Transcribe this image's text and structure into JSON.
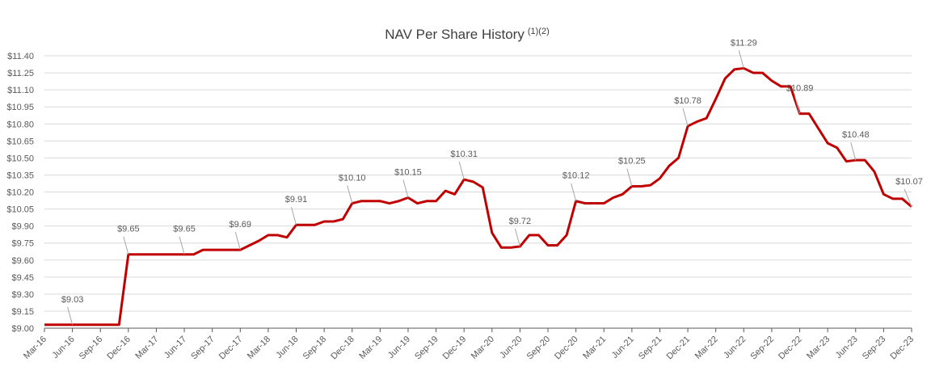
{
  "chart_data": {
    "type": "line",
    "title": "NAV Per Share History",
    "title_superscript": "(1)(2)",
    "categories": [
      "Mar-16",
      null,
      null,
      "Jun-16",
      null,
      null,
      "Sep-16",
      null,
      null,
      "Dec-16",
      null,
      null,
      "Mar-17",
      null,
      null,
      "Jun-17",
      null,
      null,
      "Sep-17",
      null,
      null,
      "Dec-17",
      null,
      null,
      "Mar-18",
      null,
      null,
      "Jun-18",
      null,
      null,
      "Sep-18",
      null,
      null,
      "Dec-18",
      null,
      null,
      "Mar-19",
      null,
      null,
      "Jun-19",
      null,
      null,
      "Sep-19",
      null,
      null,
      "Dec-19",
      null,
      null,
      "Mar-20",
      null,
      null,
      "Jun-20",
      null,
      null,
      "Sep-20",
      null,
      null,
      "Dec-20",
      null,
      null,
      "Mar-21",
      null,
      null,
      "Jun-21",
      null,
      null,
      "Sep-21",
      null,
      null,
      "Dec-21",
      null,
      null,
      "Mar-22",
      null,
      null,
      "Jun-22",
      null,
      null,
      "Sep-22",
      null,
      null,
      "Dec-22",
      null,
      null,
      "Mar-23",
      null,
      null,
      "Jun-23",
      null,
      null,
      "Sep-23",
      null,
      null,
      "Dec-23"
    ],
    "values": [
      9.03,
      9.03,
      9.03,
      9.03,
      9.03,
      9.03,
      9.03,
      9.03,
      9.03,
      9.65,
      9.65,
      9.65,
      9.65,
      9.65,
      9.65,
      9.65,
      9.65,
      9.69,
      9.69,
      9.69,
      9.69,
      9.69,
      9.73,
      9.77,
      9.82,
      9.82,
      9.8,
      9.91,
      9.91,
      9.91,
      9.94,
      9.94,
      9.96,
      10.1,
      10.12,
      10.12,
      10.12,
      10.1,
      10.12,
      10.15,
      10.1,
      10.12,
      10.12,
      10.21,
      10.18,
      10.31,
      10.29,
      10.24,
      9.84,
      9.71,
      9.71,
      9.72,
      9.82,
      9.82,
      9.73,
      9.73,
      9.82,
      10.12,
      10.1,
      10.1,
      10.1,
      10.15,
      10.18,
      10.25,
      10.25,
      10.26,
      10.32,
      10.43,
      10.5,
      10.78,
      10.82,
      10.85,
      11.02,
      11.2,
      11.28,
      11.29,
      11.25,
      11.25,
      11.18,
      11.13,
      11.13,
      10.89,
      10.89,
      10.76,
      10.63,
      10.59,
      10.47,
      10.48,
      10.48,
      10.38,
      10.18,
      10.14,
      10.14,
      10.07
    ],
    "value_labels": [
      null,
      null,
      null,
      "$9.03",
      null,
      null,
      null,
      null,
      null,
      "$9.65",
      null,
      null,
      null,
      null,
      null,
      "$9.65",
      null,
      null,
      null,
      null,
      null,
      "$9.69",
      null,
      null,
      null,
      null,
      null,
      "$9.91",
      null,
      null,
      null,
      null,
      null,
      "$10.10",
      null,
      null,
      null,
      null,
      null,
      "$10.15",
      null,
      null,
      null,
      null,
      null,
      "$10.31",
      null,
      null,
      null,
      null,
      null,
      "$9.72",
      null,
      null,
      null,
      null,
      null,
      "$10.12",
      null,
      null,
      null,
      null,
      null,
      "$10.25",
      null,
      null,
      null,
      null,
      null,
      "$10.78",
      null,
      null,
      null,
      null,
      null,
      "$11.29",
      null,
      null,
      null,
      null,
      null,
      "$10.89",
      null,
      null,
      null,
      null,
      null,
      "$10.48",
      null,
      null,
      null,
      null,
      null,
      "$10.07"
    ],
    "color": "#c00000",
    "ylim": [
      9,
      11.4
    ],
    "yticks": [
      {
        "value": 9,
        "label": "$9.00"
      },
      {
        "value": 9.15,
        "label": "$9.15"
      },
      {
        "value": 9.3,
        "label": "$9.30"
      },
      {
        "value": 9.45,
        "label": "$9.45"
      },
      {
        "value": 9.6,
        "label": "$9.60"
      },
      {
        "value": 9.75,
        "label": "$9.75"
      },
      {
        "value": 9.9,
        "label": "$9.90"
      },
      {
        "value": 10.05,
        "label": "$10.05"
      },
      {
        "value": 10.2,
        "label": "$10.20"
      },
      {
        "value": 10.35,
        "label": "$10.35"
      },
      {
        "value": 10.5,
        "label": "$10.50"
      },
      {
        "value": 10.65,
        "label": "$10.65"
      },
      {
        "value": 10.8,
        "label": "$10.80"
      },
      {
        "value": 10.95,
        "label": "$10.95"
      },
      {
        "value": 11.1,
        "label": "$11.10"
      },
      {
        "value": 11.25,
        "label": "$11.25"
      },
      {
        "value": 11.4,
        "label": "$11.40"
      }
    ],
    "grid": true
  }
}
